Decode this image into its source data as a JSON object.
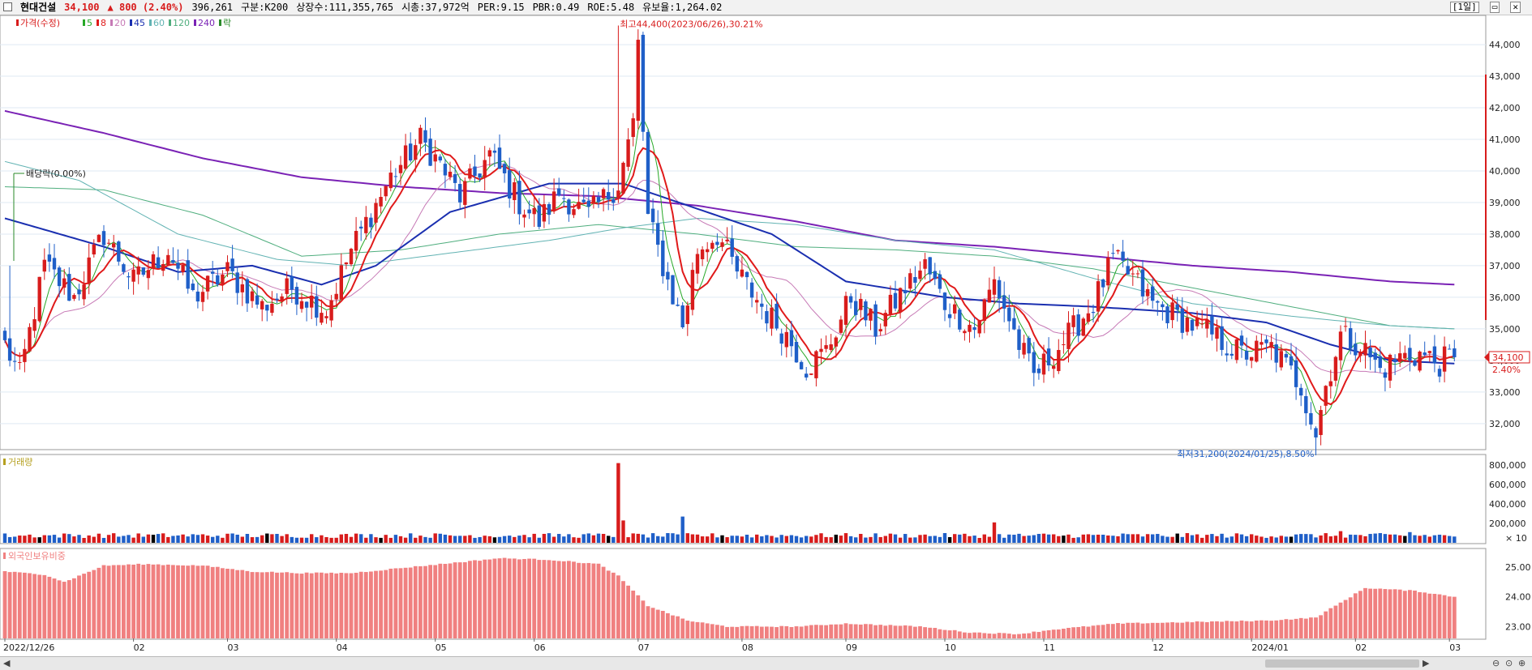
{
  "header": {
    "stock_name": "현대건설",
    "price": "34,100",
    "change": "▲ 800 (2.40%)",
    "volume": "396,261",
    "market": "구분:K200",
    "listed": "상장수:111,355,765",
    "cap": "시총:37,972억",
    "per": "PER:9.15",
    "pbr": "PBR:0.49",
    "roe": "ROE:5.48",
    "float": "유보율:1,264.02",
    "period": "[1일]"
  },
  "colors": {
    "up": "#d81c1c",
    "down": "#1f5fc8",
    "ma5": "#27a827",
    "ma8": "#e01a1a",
    "ma20": "#c77ab6",
    "ma45": "#1a2fb0",
    "ma60": "#62b3b3",
    "ma120": "#4fae7e",
    "ma240": "#7a22b5",
    "foreign": "#f08080",
    "axis": "#333333",
    "grid": "#dfe9f3"
  },
  "legend": [
    {
      "label": "가격(수정)",
      "color": "#d81c1c"
    },
    {
      "label": "5",
      "color": "#27a827"
    },
    {
      "label": "8",
      "color": "#e01a1a"
    },
    {
      "label": "20",
      "color": "#c77ab6"
    },
    {
      "label": "45",
      "color": "#1a2fb0"
    },
    {
      "label": "60",
      "color": "#62b3b3"
    },
    {
      "label": "120",
      "color": "#4fae7e"
    },
    {
      "label": "240",
      "color": "#7a22b5"
    },
    {
      "label": "락",
      "color": "#2a8a2a"
    }
  ],
  "annotations": {
    "high": "최고44,400(2023/06/26),30.21%",
    "low": "최저31,200(2024/01/25),8.50%",
    "dividend": "배당락(0.00%)",
    "current_price": "34,100",
    "current_pct": "2.40%"
  },
  "volume_panel": {
    "title": "거래량",
    "unit": "× 10"
  },
  "foreign_panel": {
    "title": "외국인보유비중"
  },
  "chart_data": [
    {
      "type": "candlestick",
      "ylim": [
        31200,
        44900
      ],
      "y_ticks": [
        32000,
        33000,
        34000,
        35000,
        36000,
        37000,
        38000,
        39000,
        40000,
        41000,
        42000,
        43000,
        44000
      ],
      "y_tick_labels": [
        "32,000",
        "33,000",
        "34,000",
        "35,000",
        "36,000",
        "37,000",
        "38,000",
        "39,000",
        "40,000",
        "41,000",
        "42,000",
        "43,000",
        "44,000"
      ],
      "x_labels": [
        "2022/12/26",
        "02",
        "03",
        "04",
        "05",
        "06",
        "07",
        "08",
        "09",
        "10",
        "11",
        "12",
        "2024/01",
        "02",
        "03"
      ],
      "x_label_pos": [
        0,
        26,
        45,
        67,
        87,
        107,
        128,
        149,
        170,
        190,
        210,
        232,
        252,
        273,
        292
      ],
      "knots": [
        [
          0,
          34500
        ],
        [
          3,
          33500
        ],
        [
          8,
          37000
        ],
        [
          14,
          36000
        ],
        [
          20,
          38000
        ],
        [
          26,
          36500
        ],
        [
          33,
          37500
        ],
        [
          38,
          36000
        ],
        [
          45,
          36800
        ],
        [
          52,
          35700
        ],
        [
          58,
          36300
        ],
        [
          65,
          35600
        ],
        [
          70,
          37500
        ],
        [
          78,
          39800
        ],
        [
          84,
          41000
        ],
        [
          88,
          40200
        ],
        [
          92,
          39200
        ],
        [
          98,
          40500
        ],
        [
          104,
          39000
        ],
        [
          108,
          38400
        ],
        [
          112,
          39300
        ],
        [
          118,
          38600
        ],
        [
          124,
          39600
        ],
        [
          127,
          41500
        ],
        [
          128,
          44000
        ],
        [
          130,
          38500
        ],
        [
          134,
          36500
        ],
        [
          137,
          35100
        ],
        [
          140,
          37500
        ],
        [
          144,
          38000
        ],
        [
          148,
          36800
        ],
        [
          154,
          35500
        ],
        [
          158,
          34800
        ],
        [
          162,
          33800
        ],
        [
          166,
          34300
        ],
        [
          171,
          36000
        ],
        [
          176,
          35000
        ],
        [
          182,
          36300
        ],
        [
          186,
          37000
        ],
        [
          190,
          35800
        ],
        [
          196,
          35000
        ],
        [
          200,
          36500
        ],
        [
          205,
          34500
        ],
        [
          208,
          33500
        ],
        [
          214,
          34600
        ],
        [
          220,
          35800
        ],
        [
          224,
          37200
        ],
        [
          228,
          36600
        ],
        [
          232,
          35800
        ],
        [
          238,
          35300
        ],
        [
          244,
          34800
        ],
        [
          250,
          34200
        ],
        [
          256,
          34400
        ],
        [
          262,
          33200
        ],
        [
          265,
          31700
        ],
        [
          267,
          33200
        ],
        [
          270,
          34800
        ],
        [
          274,
          34500
        ],
        [
          278,
          33700
        ],
        [
          282,
          34100
        ],
        [
          286,
          34200
        ],
        [
          290,
          33900
        ],
        [
          293,
          34200
        ]
      ],
      "high": {
        "index": 124,
        "value": 44400
      },
      "low": {
        "index": 265,
        "value": 31200
      },
      "last": {
        "value": 34100,
        "change": 800
      },
      "ma45_knots": [
        [
          0,
          38500
        ],
        [
          20,
          37600
        ],
        [
          35,
          36800
        ],
        [
          50,
          37000
        ],
        [
          64,
          36400
        ],
        [
          75,
          37000
        ],
        [
          90,
          38700
        ],
        [
          110,
          39600
        ],
        [
          125,
          39600
        ],
        [
          140,
          38800
        ],
        [
          155,
          38000
        ],
        [
          170,
          36500
        ],
        [
          190,
          36000
        ],
        [
          205,
          35800
        ],
        [
          220,
          35700
        ],
        [
          240,
          35500
        ],
        [
          255,
          35200
        ],
        [
          268,
          34500
        ],
        [
          280,
          34000
        ],
        [
          293,
          33900
        ]
      ],
      "ma60_knots": [
        [
          0,
          40300
        ],
        [
          15,
          39700
        ],
        [
          35,
          38000
        ],
        [
          55,
          37200
        ],
        [
          70,
          37000
        ],
        [
          90,
          37400
        ],
        [
          110,
          37800
        ],
        [
          125,
          38200
        ],
        [
          140,
          38500
        ],
        [
          160,
          38300
        ],
        [
          180,
          37800
        ],
        [
          200,
          37500
        ],
        [
          220,
          36600
        ],
        [
          240,
          35800
        ],
        [
          260,
          35400
        ],
        [
          280,
          35100
        ],
        [
          293,
          35000
        ]
      ],
      "ma120_knots": [
        [
          0,
          39500
        ],
        [
          20,
          39400
        ],
        [
          40,
          38600
        ],
        [
          60,
          37300
        ],
        [
          80,
          37500
        ],
        [
          100,
          38000
        ],
        [
          120,
          38300
        ],
        [
          140,
          38000
        ],
        [
          160,
          37600
        ],
        [
          180,
          37500
        ],
        [
          200,
          37300
        ],
        [
          220,
          36900
        ],
        [
          240,
          36300
        ],
        [
          260,
          35700
        ],
        [
          280,
          35100
        ],
        [
          293,
          35000
        ]
      ],
      "ma240_knots": [
        [
          0,
          41900
        ],
        [
          20,
          41200
        ],
        [
          40,
          40400
        ],
        [
          60,
          39800
        ],
        [
          80,
          39500
        ],
        [
          100,
          39300
        ],
        [
          120,
          39200
        ],
        [
          140,
          38900
        ],
        [
          160,
          38400
        ],
        [
          180,
          37800
        ],
        [
          200,
          37600
        ],
        [
          220,
          37300
        ],
        [
          240,
          37000
        ],
        [
          260,
          36800
        ],
        [
          280,
          36500
        ],
        [
          293,
          36400
        ]
      ]
    },
    {
      "type": "bar",
      "name": "거래량",
      "ylim": [
        0,
        900000
      ],
      "y_ticks": [
        200000,
        400000,
        600000,
        800000
      ],
      "y_tick_labels": [
        "200,000",
        "400,000",
        "600,000",
        "800,000"
      ],
      "spikes": [
        [
          124,
          820000
        ],
        [
          125,
          230000
        ],
        [
          137,
          270000
        ],
        [
          200,
          210000
        ],
        [
          270,
          120000
        ],
        [
          284,
          110000
        ]
      ],
      "base": 50000
    },
    {
      "type": "bar",
      "name": "외국인보유비중",
      "ylim": [
        22.6,
        25.6
      ],
      "y_ticks": [
        23.0,
        24.0,
        25.0
      ],
      "y_tick_labels": [
        "23.00",
        "24.00",
        "25.00"
      ],
      "knots": [
        [
          0,
          24.85
        ],
        [
          8,
          24.75
        ],
        [
          12,
          24.5
        ],
        [
          20,
          25.05
        ],
        [
          28,
          25.1
        ],
        [
          40,
          25.05
        ],
        [
          50,
          24.85
        ],
        [
          60,
          24.8
        ],
        [
          70,
          24.8
        ],
        [
          85,
          25.05
        ],
        [
          100,
          25.3
        ],
        [
          110,
          25.25
        ],
        [
          120,
          25.1
        ],
        [
          124,
          24.7
        ],
        [
          130,
          23.7
        ],
        [
          138,
          23.2
        ],
        [
          146,
          23.0
        ],
        [
          160,
          23.0
        ],
        [
          170,
          23.1
        ],
        [
          185,
          23.0
        ],
        [
          195,
          22.8
        ],
        [
          205,
          22.75
        ],
        [
          212,
          22.9
        ],
        [
          225,
          23.1
        ],
        [
          240,
          23.15
        ],
        [
          255,
          23.2
        ],
        [
          265,
          23.3
        ],
        [
          270,
          23.8
        ],
        [
          275,
          24.3
        ],
        [
          285,
          24.2
        ],
        [
          293,
          24.0
        ]
      ]
    }
  ]
}
